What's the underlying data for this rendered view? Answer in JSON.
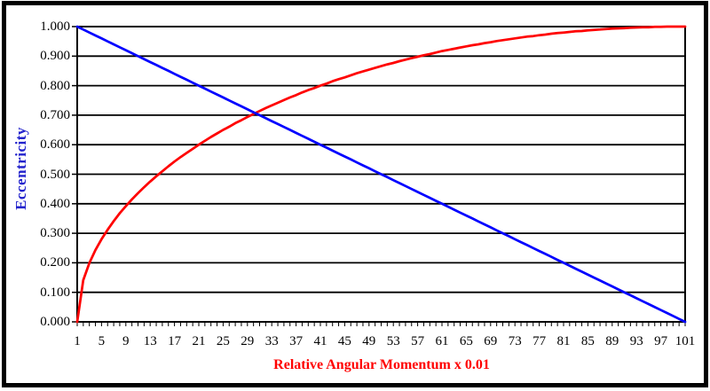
{
  "chart_data": {
    "type": "line",
    "title": "",
    "xlabel": "Relative Angular Momentum x 0.01",
    "ylabel": "Eccentricity",
    "xlabel_color": "#ff0000",
    "ylabel_color": "#2222cc",
    "background_color": "#ffffff",
    "grid_color": "#000000",
    "frame_color": "#000000",
    "grid": "horizontal-only",
    "legend": "none",
    "ylim": [
      0.0,
      1.0
    ],
    "y_tick_step": 0.1,
    "y_tick_labels": [
      "0.000",
      "0.100",
      "0.200",
      "0.300",
      "0.400",
      "0.500",
      "0.600",
      "0.700",
      "0.800",
      "0.900",
      "1.000"
    ],
    "x_first": 1,
    "x_last": 101,
    "x_tick_labels": [
      "1",
      "5",
      "9",
      "13",
      "17",
      "21",
      "25",
      "29",
      "33",
      "37",
      "41",
      "45",
      "49",
      "53",
      "57",
      "61",
      "65",
      "69",
      "73",
      "77",
      "81",
      "85",
      "89",
      "93",
      "97",
      "101"
    ],
    "series": [
      {
        "name": "red-rising-curve",
        "color": "#ff0000",
        "values": [
          0.0,
          0.141,
          0.199,
          0.243,
          0.28,
          0.312,
          0.341,
          0.368,
          0.392,
          0.415,
          0.436,
          0.456,
          0.475,
          0.493,
          0.51,
          0.527,
          0.543,
          0.558,
          0.572,
          0.586,
          0.6,
          0.613,
          0.626,
          0.638,
          0.65,
          0.661,
          0.673,
          0.683,
          0.694,
          0.704,
          0.714,
          0.724,
          0.733,
          0.742,
          0.751,
          0.76,
          0.768,
          0.777,
          0.785,
          0.792,
          0.8,
          0.807,
          0.815,
          0.822,
          0.828,
          0.835,
          0.842,
          0.848,
          0.854,
          0.86,
          0.866,
          0.872,
          0.877,
          0.883,
          0.888,
          0.893,
          0.898,
          0.903,
          0.907,
          0.912,
          0.917,
          0.921,
          0.925,
          0.929,
          0.933,
          0.937,
          0.94,
          0.944,
          0.947,
          0.951,
          0.954,
          0.957,
          0.96,
          0.963,
          0.966,
          0.968,
          0.971,
          0.973,
          0.976,
          0.978,
          0.98,
          0.982,
          0.984,
          0.985,
          0.987,
          0.989,
          0.99,
          0.992,
          0.993,
          0.994,
          0.995,
          0.996,
          0.997,
          0.998,
          0.998,
          0.999,
          0.999,
          1.0,
          1.0,
          1.0,
          1.0
        ]
      },
      {
        "name": "blue-falling-curve",
        "color": "#0000ff",
        "values": [
          1.0,
          0.99,
          0.98,
          0.97,
          0.96,
          0.95,
          0.94,
          0.93,
          0.92,
          0.91,
          0.9,
          0.89,
          0.88,
          0.87,
          0.86,
          0.85,
          0.84,
          0.83,
          0.82,
          0.81,
          0.8,
          0.79,
          0.78,
          0.77,
          0.76,
          0.75,
          0.74,
          0.73,
          0.72,
          0.71,
          0.7,
          0.69,
          0.68,
          0.67,
          0.66,
          0.65,
          0.64,
          0.63,
          0.62,
          0.61,
          0.6,
          0.59,
          0.58,
          0.57,
          0.56,
          0.55,
          0.54,
          0.53,
          0.52,
          0.51,
          0.5,
          0.49,
          0.48,
          0.47,
          0.46,
          0.45,
          0.44,
          0.43,
          0.42,
          0.41,
          0.4,
          0.39,
          0.38,
          0.37,
          0.36,
          0.35,
          0.34,
          0.33,
          0.32,
          0.31,
          0.3,
          0.29,
          0.28,
          0.27,
          0.26,
          0.25,
          0.24,
          0.23,
          0.22,
          0.21,
          0.2,
          0.19,
          0.18,
          0.17,
          0.16,
          0.15,
          0.14,
          0.13,
          0.12,
          0.11,
          0.1,
          0.09,
          0.08,
          0.07,
          0.06,
          0.05,
          0.04,
          0.03,
          0.02,
          0.01,
          0.0
        ]
      }
    ]
  }
}
